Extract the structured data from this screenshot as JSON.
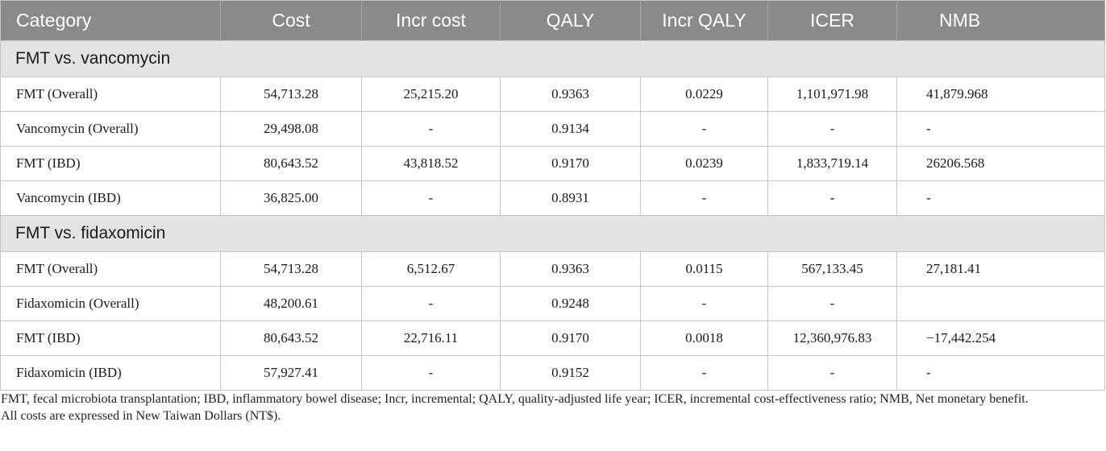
{
  "headers": [
    "Category",
    "Cost",
    "Incr cost",
    "QALY",
    "Incr QALY",
    "ICER",
    "NMB"
  ],
  "sections": [
    {
      "title": "FMT vs. vancomycin",
      "rows": [
        [
          "FMT (Overall)",
          "54,713.28",
          "25,215.20",
          "0.9363",
          "0.0229",
          "1,101,971.98",
          "41,879.968"
        ],
        [
          "Vancomycin (Overall)",
          "29,498.08",
          "-",
          "0.9134",
          "-",
          "-",
          "-"
        ],
        [
          "FMT (IBD)",
          "80,643.52",
          "43,818.52",
          "0.9170",
          "0.0239",
          "1,833,719.14",
          "26206.568"
        ],
        [
          "Vancomycin (IBD)",
          "36,825.00",
          "-",
          "0.8931",
          "-",
          "-",
          "-"
        ]
      ]
    },
    {
      "title": "FMT vs. fidaxomicin",
      "rows": [
        [
          "FMT (Overall)",
          "54,713.28",
          "6,512.67",
          "0.9363",
          "0.0115",
          "567,133.45",
          "27,181.41"
        ],
        [
          "Fidaxomicin (Overall)",
          "48,200.61",
          "-",
          "0.9248",
          "-",
          "-",
          ""
        ],
        [
          "FMT (IBD)",
          "80,643.52",
          "22,716.11",
          "0.9170",
          "0.0018",
          "12,360,976.83",
          "−17,442.254"
        ],
        [
          "Fidaxomicin (IBD)",
          "57,927.41",
          "-",
          "0.9152",
          "-",
          "-",
          "-"
        ]
      ]
    }
  ],
  "footnote": {
    "abbreviations": "FMT, fecal microbiota transplantation; IBD, inflammatory bowel disease; Incr, incremental; QALY, quality-adjusted life year; ICER, incremental cost-effectiveness ratio; NMB, Net monetary benefit.",
    "currency_note": "All costs are expressed in New Taiwan Dollars (NT$)."
  }
}
